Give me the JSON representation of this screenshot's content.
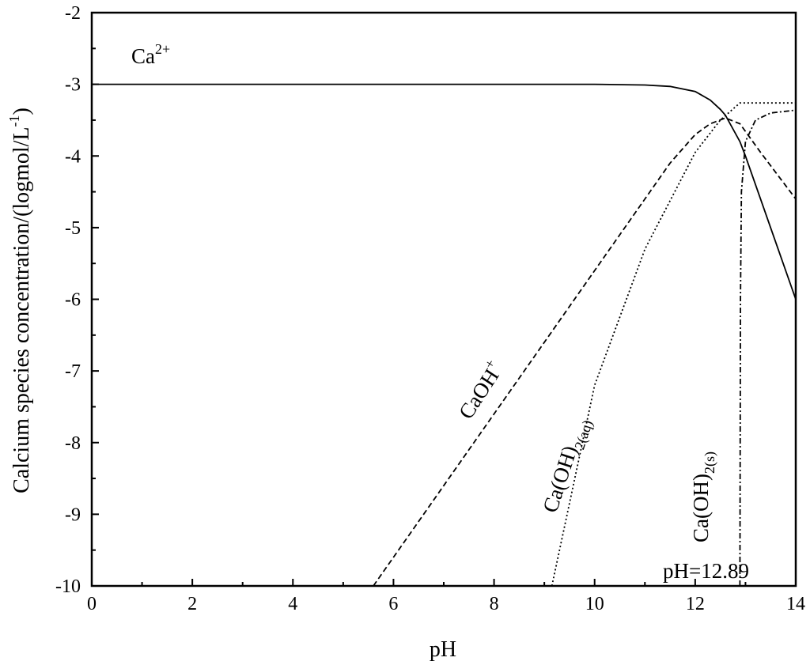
{
  "chart_data": {
    "type": "line",
    "xlabel": "pH",
    "ylabel_parts": {
      "main": "Calcium species concentration/(logmol/L",
      "sup": "-1",
      "close": ")"
    },
    "xlim": [
      0,
      14
    ],
    "ylim": [
      -10,
      -2
    ],
    "x_ticks": [
      "0",
      "2",
      "4",
      "6",
      "8",
      "10",
      "12",
      "14"
    ],
    "y_ticks": [
      "-2",
      "-3",
      "-4",
      "-5",
      "-6",
      "-7",
      "-8",
      "-9",
      "-10"
    ],
    "grid": false,
    "series": [
      {
        "name": "Ca2+",
        "style": "solid",
        "points": [
          [
            0,
            -3
          ],
          [
            10,
            -3.0
          ],
          [
            11,
            -3.01
          ],
          [
            11.5,
            -3.03
          ],
          [
            12,
            -3.1
          ],
          [
            12.3,
            -3.22
          ],
          [
            12.5,
            -3.35
          ],
          [
            12.6,
            -3.43
          ],
          [
            12.89,
            -3.8
          ],
          [
            13,
            -4.0
          ],
          [
            13.5,
            -5.0
          ],
          [
            14,
            -6.0
          ]
        ]
      },
      {
        "name": "CaOH+",
        "style": "dashed",
        "points": [
          [
            5.6,
            -10
          ],
          [
            11,
            -4.6
          ],
          [
            11.5,
            -4.1
          ],
          [
            12,
            -3.7
          ],
          [
            12.3,
            -3.55
          ],
          [
            12.6,
            -3.47
          ],
          [
            12.89,
            -3.55
          ],
          [
            13.3,
            -3.95
          ],
          [
            14,
            -4.6
          ]
        ]
      },
      {
        "name": "Ca(OH)2(aq)",
        "style": "dotted",
        "points": [
          [
            9.15,
            -10
          ],
          [
            10,
            -7.2
          ],
          [
            11,
            -5.3
          ],
          [
            12,
            -3.95
          ],
          [
            12.5,
            -3.5
          ],
          [
            12.89,
            -3.26
          ],
          [
            14,
            -3.26
          ]
        ]
      },
      {
        "name": "Ca(OH)2(s)",
        "style": "dashdot",
        "points": [
          [
            12.89,
            -10
          ],
          [
            12.9,
            -6.0
          ],
          [
            12.92,
            -4.5
          ],
          [
            13.0,
            -3.8
          ],
          [
            13.2,
            -3.5
          ],
          [
            13.5,
            -3.4
          ],
          [
            14,
            -3.36
          ]
        ]
      }
    ],
    "annotations": {
      "ca2": {
        "base": "Ca",
        "sup": "2+"
      },
      "caoh": {
        "base": "CaOH",
        "sup": "+"
      },
      "caoh2aq": {
        "base": "Ca(OH)",
        "sub": "2(aq)"
      },
      "caoh2s": {
        "base": "Ca(OH)",
        "sub": "2(s)"
      },
      "ph_marker": "pH=12.89"
    }
  }
}
